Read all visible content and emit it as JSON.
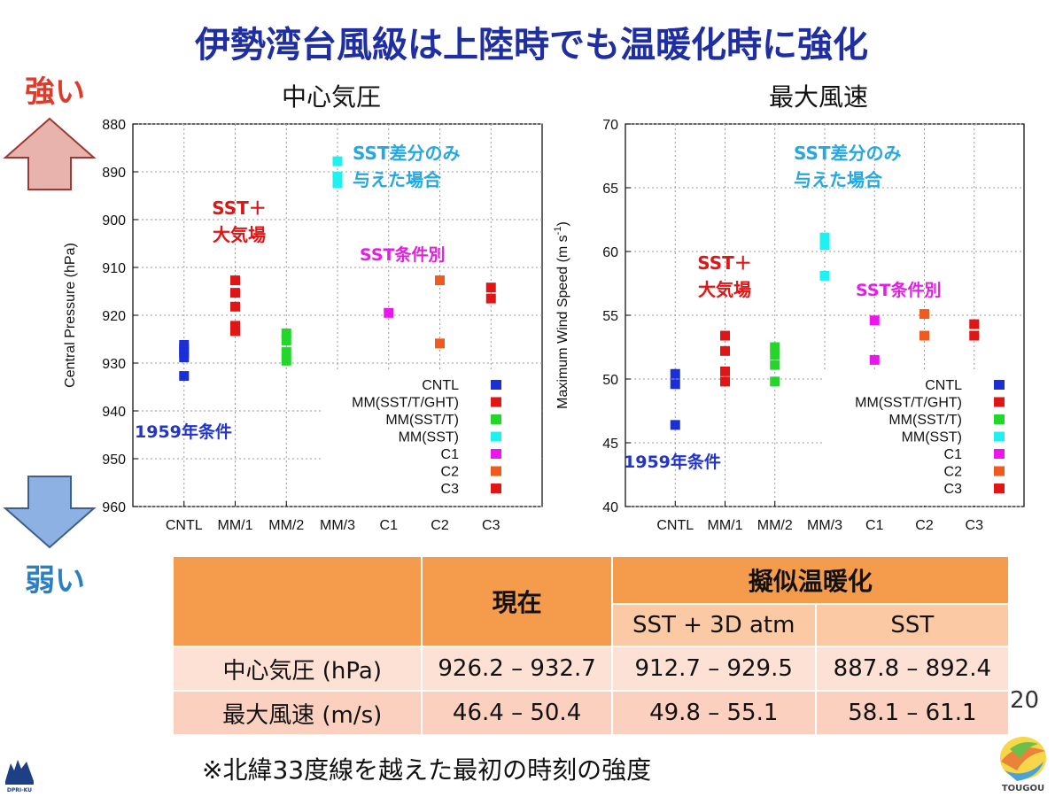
{
  "title": "伊勢湾台風級は上陸時でも温暖化時に強化",
  "side": {
    "strong": "強い",
    "weak": "弱い"
  },
  "colors": {
    "CNTL": "#1a2fd6",
    "MMSSTTGHT": "#e01616",
    "MMSSTT": "#23d62a",
    "MMSST": "#1ff0f0",
    "C1": "#ee14ee",
    "C2": "#f05a1e",
    "C3": "#e01616"
  },
  "chart_data": [
    {
      "type": "scatter",
      "title": "中心気圧",
      "ylabel": "Central Pressure (hPa)",
      "ylim": [
        880,
        960
      ],
      "y_inverted": true,
      "yticks": [
        "880",
        "890",
        "900",
        "910",
        "920",
        "930",
        "940",
        "950",
        "960"
      ],
      "categories": [
        "CNTL",
        "MM/1",
        "MM/2",
        "MM/3",
        "C1",
        "C2",
        "C3"
      ],
      "series": [
        {
          "name": "CNTL",
          "color": "#1a2fd6",
          "category": "CNTL",
          "values": [
            926.2,
            927.0,
            927.8,
            928.8,
            932.7
          ]
        },
        {
          "name": "MM(SST/T/GHT)",
          "color": "#e01616",
          "category": "MM/1",
          "values": [
            912.7,
            915.3,
            918.2,
            922.2,
            923.3
          ]
        },
        {
          "name": "MM(SST/T)",
          "color": "#23d62a",
          "category": "MM/2",
          "values": [
            923.8,
            925.3,
            927.7,
            929.5
          ]
        },
        {
          "name": "MM(SST)",
          "color": "#1ff0f0",
          "category": "MM/3",
          "values": [
            887.8,
            891.0,
            892.4
          ]
        },
        {
          "name": "C1",
          "color": "#ee14ee",
          "category": "C1",
          "values": [
            919.5
          ]
        },
        {
          "name": "C2",
          "color": "#f05a1e",
          "category": "C2",
          "values": [
            912.7,
            925.9
          ]
        },
        {
          "name": "C3",
          "color": "#e01616",
          "category": "C3",
          "values": [
            914.2,
            916.5
          ]
        }
      ],
      "annotations": {
        "sst_only": [
          "SST差分のみ",
          "与えた場合"
        ],
        "sst_atm": [
          "SST＋",
          "大気場"
        ],
        "by_sst": "SST条件別",
        "year": "1959年条件"
      },
      "legend_position": "bottom-right"
    },
    {
      "type": "scatter",
      "title": "最大風速",
      "ylabel_main": "Maximum Wind Speed (m s",
      "ylabel_sup": "-1",
      "ylabel_end": ")",
      "ylim": [
        40,
        70
      ],
      "yticks": [
        "40",
        "45",
        "50",
        "55",
        "60",
        "65",
        "70"
      ],
      "categories": [
        "CNTL",
        "MM/1",
        "MM/2",
        "MM/3",
        "C1",
        "C2",
        "C3"
      ],
      "series": [
        {
          "name": "CNTL",
          "color": "#1a2fd6",
          "category": "CNTL",
          "values": [
            46.4,
            49.6,
            50.4
          ]
        },
        {
          "name": "MM(SST/T/GHT)",
          "color": "#e01616",
          "category": "MM/1",
          "values": [
            49.8,
            50.6,
            52.2,
            53.4
          ]
        },
        {
          "name": "MM(SST/T)",
          "color": "#23d62a",
          "category": "MM/2",
          "values": [
            49.8,
            51.1,
            51.9,
            52.5
          ]
        },
        {
          "name": "MM(SST)",
          "color": "#1ff0f0",
          "category": "MM/3",
          "values": [
            58.1,
            60.5,
            61.1
          ]
        },
        {
          "name": "C1",
          "color": "#ee14ee",
          "category": "C1",
          "values": [
            51.5,
            54.6
          ]
        },
        {
          "name": "C2",
          "color": "#f05a1e",
          "category": "C2",
          "values": [
            53.4,
            55.1
          ]
        },
        {
          "name": "C3",
          "color": "#e01616",
          "category": "C3",
          "values": [
            53.4,
            54.3
          ]
        }
      ],
      "annotations": {
        "sst_only": [
          "SST差分のみ",
          "与えた場合"
        ],
        "sst_atm": [
          "SST＋",
          "大気場"
        ],
        "by_sst": "SST条件別",
        "year": "1959年条件"
      },
      "legend_position": "bottom-right"
    }
  ],
  "table": {
    "header_now": "現在",
    "header_pgw": "擬似温暖化",
    "sub1": "SST + 3D atm",
    "sub2": "SST",
    "rows": [
      {
        "label": "中心気圧 (hPa)",
        "now": "926.2 – 932.7",
        "sst_atm": "912.7 – 929.5",
        "sst": "887.8 – 892.4"
      },
      {
        "label": "最大風速 (m/s)",
        "now": "46.4 – 50.4",
        "sst_atm": "49.8 – 55.1",
        "sst": "58.1 – 61.1"
      }
    ]
  },
  "page_number": "20",
  "footnote": "※北緯33度線を越えた最初の時刻の強度",
  "logos": {
    "left": "DPRI-KU",
    "right": "TOUGOU"
  }
}
